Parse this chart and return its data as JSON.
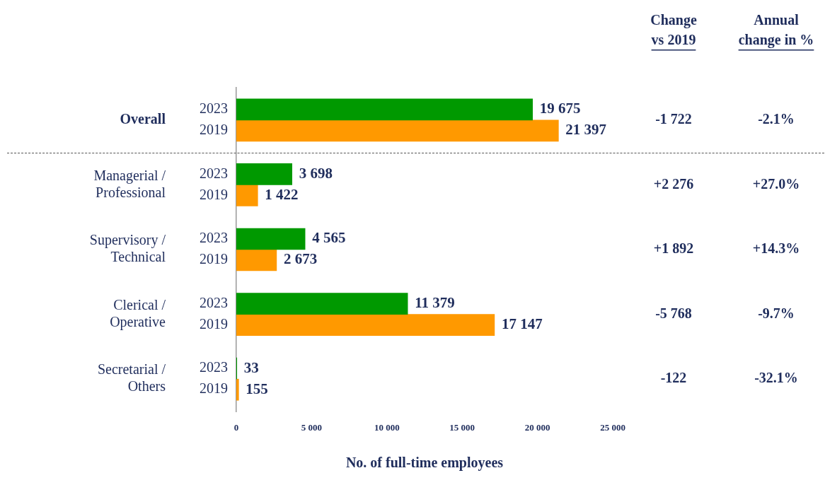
{
  "chart_data": {
    "type": "bar",
    "orientation": "horizontal",
    "categories": [
      "Overall",
      "Managerial / Professional",
      "Supervisory / Technical",
      "Clerical / Operative",
      "Secretarial / Others"
    ],
    "series": [
      {
        "name": "2023",
        "color": "#009900",
        "values": [
          19675,
          3698,
          4565,
          11379,
          33
        ],
        "value_labels": [
          "19 675",
          "3 698",
          "4 565",
          "11 379",
          "33"
        ]
      },
      {
        "name": "2019",
        "color": "#ff9900",
        "values": [
          21397,
          1422,
          2673,
          17147,
          155
        ],
        "value_labels": [
          "21 397",
          "1 422",
          "2 673",
          "17 147",
          "155"
        ]
      }
    ],
    "xlabel": "No. of full-time employees",
    "xlim": [
      0,
      25000
    ],
    "xticks": [
      0,
      {
        "value": 5000,
        "label": "5 000"
      },
      {
        "value": 10000,
        "label": "10 000"
      },
      {
        "value": 15000,
        "label": "15 000"
      },
      {
        "value": 20000,
        "label": "20 000"
      },
      {
        "value": 25000,
        "label": "25 000"
      }
    ],
    "grid": false,
    "legend": false,
    "annotations": [
      "Change vs 2019",
      "Annual change in %",
      "-1 722",
      "-2.1%",
      "+2 276",
      "+27.0%",
      "+1 892",
      "+14.3%",
      "-5 768",
      "-9.7%",
      "-122",
      "-32.1%"
    ]
  }
}
